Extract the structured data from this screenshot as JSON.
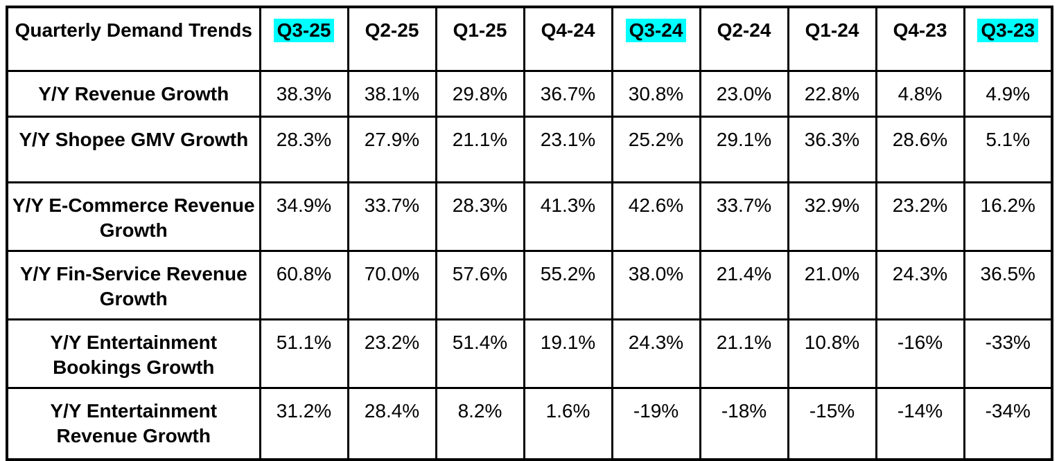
{
  "chart_data": {
    "type": "table",
    "title": "Quarterly Demand Trends",
    "highlight_color": "#00ffff",
    "categories": [
      "Q3-25",
      "Q2-25",
      "Q1-25",
      "Q4-24",
      "Q3-24",
      "Q2-24",
      "Q1-24",
      "Q4-23",
      "Q3-23"
    ],
    "highlighted_categories": [
      "Q3-25",
      "Q3-24",
      "Q3-23"
    ],
    "series": [
      {
        "name": "Y/Y Revenue Growth",
        "values": [
          "38.3%",
          "38.1%",
          "29.8%",
          "36.7%",
          "30.8%",
          "23.0%",
          "22.8%",
          "4.8%",
          "4.9%"
        ]
      },
      {
        "name": "Y/Y Shopee GMV Growth",
        "values": [
          "28.3%",
          "27.9%",
          "21.1%",
          "23.1%",
          "25.2%",
          "29.1%",
          "36.3%",
          "28.6%",
          "5.1%"
        ]
      },
      {
        "name": "Y/Y E-Commerce Revenue Growth",
        "values": [
          "34.9%",
          "33.7%",
          "28.3%",
          "41.3%",
          "42.6%",
          "33.7%",
          "32.9%",
          "23.2%",
          "16.2%"
        ]
      },
      {
        "name": "Y/Y Fin-Service Revenue Growth",
        "values": [
          "60.8%",
          "70.0%",
          "57.6%",
          "55.2%",
          "38.0%",
          "21.4%",
          "21.0%",
          "24.3%",
          "36.5%"
        ]
      },
      {
        "name": "Y/Y Entertainment Bookings Growth",
        "values": [
          "51.1%",
          "23.2%",
          "51.4%",
          "19.1%",
          "24.3%",
          "21.1%",
          "10.8%",
          "-16%",
          "-33%"
        ]
      },
      {
        "name": "Y/Y Entertainment Revenue Growth",
        "values": [
          "31.2%",
          "28.4%",
          "8.2%",
          "1.6%",
          "-19%",
          "-18%",
          "-15%",
          "-14%",
          "-34%"
        ]
      }
    ]
  }
}
